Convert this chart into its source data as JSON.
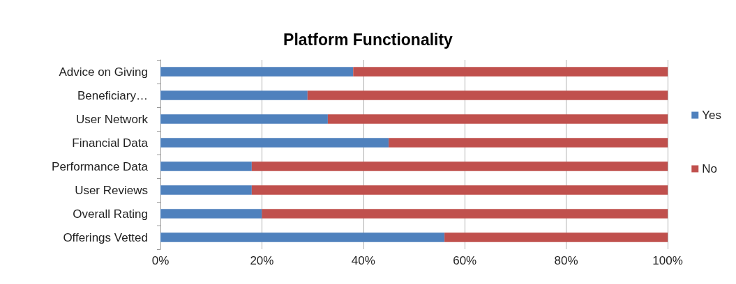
{
  "chart_data": {
    "type": "bar",
    "title": "Platform Functionality",
    "orientation": "horizontal",
    "stacked": true,
    "categories": [
      "Advice on Giving",
      "Beneficiary…",
      "User Network",
      "Financial Data",
      "Performance Data",
      "User Reviews",
      "Overall Rating",
      "Offerings Vetted"
    ],
    "series": [
      {
        "name": "Yes",
        "color": "#4f81bd",
        "values": [
          38,
          29,
          33,
          45,
          18,
          18,
          20,
          56
        ]
      },
      {
        "name": "No",
        "color": "#c0504d",
        "values": [
          62,
          71,
          67,
          55,
          82,
          82,
          80,
          44
        ]
      }
    ],
    "xlim": [
      0,
      100
    ],
    "xticks": [
      {
        "value": 0,
        "label": "0%"
      },
      {
        "value": 20,
        "label": "20%"
      },
      {
        "value": 40,
        "label": "40%"
      },
      {
        "value": 60,
        "label": "60%"
      },
      {
        "value": 80,
        "label": "80%"
      },
      {
        "value": 100,
        "label": "100%"
      }
    ],
    "grid": "x",
    "legend": "right"
  }
}
